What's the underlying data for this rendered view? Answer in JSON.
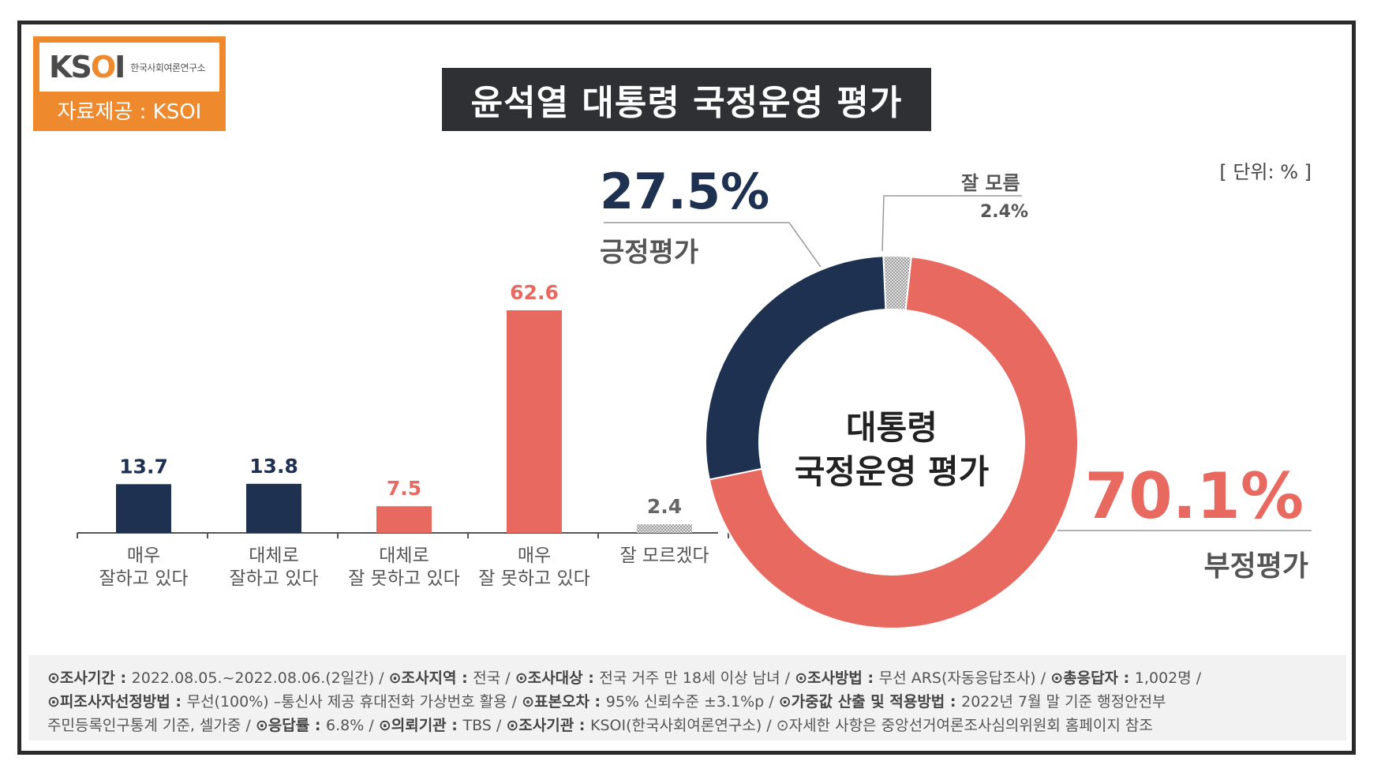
{
  "logo": {
    "mark_k": "K",
    "mark_s": "S",
    "mark_o": "O",
    "mark_i": "I",
    "org": "한국사회여론연구소",
    "credit": "자료제공 : KSOI"
  },
  "title": "윤석열 대통령 국정운영 평가",
  "unit_label": "[ 단위: % ]",
  "colors": {
    "positive": "#1e3150",
    "negative": "#e8695f",
    "unknown": "#c9c9c9",
    "axis": "#555555"
  },
  "chart_data": [
    {
      "type": "bar",
      "categories": [
        [
          "매우",
          "잘하고 있다"
        ],
        [
          "대체로",
          "잘하고 있다"
        ],
        [
          "대체로",
          "잘 못하고 있다"
        ],
        [
          "매우",
          "잘 못하고 있다"
        ],
        [
          "잘 모르겠다"
        ]
      ],
      "values": [
        13.7,
        13.8,
        7.5,
        62.6,
        2.4
      ],
      "value_labels": [
        "13.7",
        "13.8",
        "7.5",
        "62.6",
        "2.4"
      ],
      "bar_colors": [
        "#1e3150",
        "#1e3150",
        "#e8695f",
        "#e8695f",
        "#c9c9c9"
      ],
      "label_colors": [
        "#1e3150",
        "#1e3150",
        "#e8695f",
        "#e8695f",
        "#666666"
      ],
      "grid": false
    },
    {
      "type": "pie",
      "center_label": [
        "대통령",
        "국정운영 평가"
      ],
      "slices": [
        {
          "label": "부정평가",
          "value": 70.1,
          "display": "70.1%",
          "color": "#e8695f"
        },
        {
          "label": "긍정평가",
          "value": 27.5,
          "display": "27.5%",
          "color": "#1e3150"
        },
        {
          "label": "잘 모름",
          "value": 2.4,
          "display": "2.4%",
          "color": "#c9c9c9"
        }
      ]
    }
  ],
  "footer": {
    "line1": [
      {
        "k": "⊙조사기간 : ",
        "v": "2022.08.05.~2022.08.06.(2일간) / "
      },
      {
        "k": "⊙조사지역 : ",
        "v": "전국 / "
      },
      {
        "k": "⊙조사대상 : ",
        "v": "전국 거주 만 18세 이상 남녀 / "
      },
      {
        "k": "⊙조사방법 : ",
        "v": "무선 ARS(자동응답조사) / "
      },
      {
        "k": "⊙총응답자 : ",
        "v": "1,002명 /"
      }
    ],
    "line2": [
      {
        "k": "⊙피조사자선정방법 : ",
        "v": "무선(100%) –통신사 제공 휴대전화 가상번호 활용 / "
      },
      {
        "k": "⊙표본오차 : ",
        "v": "95% 신뢰수준 ±3.1%p / "
      },
      {
        "k": "⊙가중값 산출 및 적용방법 : ",
        "v": "2022년 7월 말 기준 행정안전부"
      }
    ],
    "line3": [
      {
        "k": "",
        "v": "주민등록인구통계 기준, 셀가중 / "
      },
      {
        "k": "⊙응답률 : ",
        "v": "6.8% / "
      },
      {
        "k": "⊙의뢰기관 : ",
        "v": "TBS / "
      },
      {
        "k": "⊙조사기관 : ",
        "v": "KSOI(한국사회여론연구소) / "
      },
      {
        "k": "",
        "v": "⊙자세한 사항은 중앙선거여론조사심의위원회 홈페이지 참조"
      }
    ]
  }
}
